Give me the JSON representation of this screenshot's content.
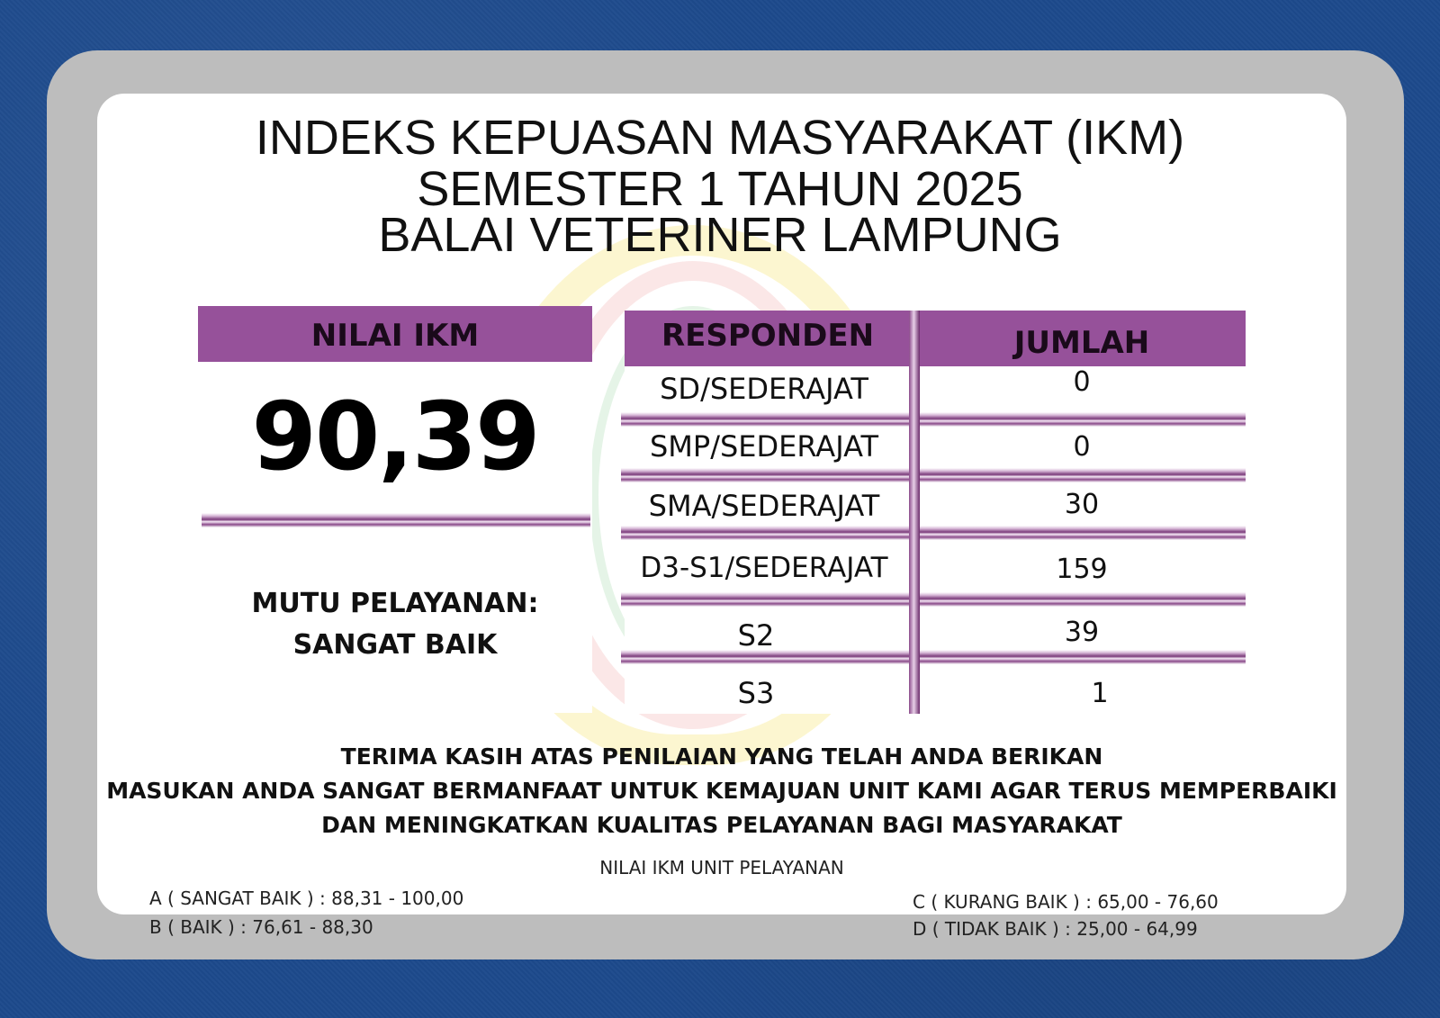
{
  "title": {
    "line1": "INDEKS KEPUASAN MASYARAKAT (IKM)",
    "line2": "SEMESTER 1 TAHUN 2025",
    "line3": "BALAI VETERINER LAMPUNG"
  },
  "nilai": {
    "header": "NILAI IKM",
    "score": "90,39",
    "mutu_label": "MUTU PELAYANAN:",
    "mutu_value": "SANGAT BAIK"
  },
  "responden": {
    "header_responden": "RESPONDEN",
    "header_jumlah": "JUMLAH",
    "rows": [
      {
        "label": "SD/SEDERAJAT",
        "count": "0"
      },
      {
        "label": "SMP/SEDERAJAT",
        "count": "0"
      },
      {
        "label": "SMA/SEDERAJAT",
        "count": "30"
      },
      {
        "label": "D3-S1/SEDERAJAT",
        "count": "159"
      },
      {
        "label": "S2",
        "count": "39"
      },
      {
        "label": "S3",
        "count": "1"
      }
    ]
  },
  "thanks": {
    "line1": "TERIMA KASIH ATAS PENILAIAN YANG TELAH ANDA BERIKAN",
    "line2": "MASUKAN ANDA SANGAT BERMANFAAT UNTUK KEMAJUAN UNIT KAMI AGAR TERUS MEMPERBAIKI",
    "line3": "DAN MENINGKATKAN KUALITAS PELAYANAN BAGI MASYARAKAT"
  },
  "legend": {
    "title": "NILAI IKM UNIT PELAYANAN",
    "a": "A ( SANGAT BAIK ) : 88,31 - 100,00",
    "b": "B ( BAIK ) : 76,61 - 88,30",
    "c": "C ( KURANG BAIK ) : 65,00 - 76,60",
    "d": "D ( TIDAK BAIK ) : 25,00 - 64,99"
  },
  "colors": {
    "header_purple": "#96519a",
    "background_blue": "#1d4a8c",
    "frame_gray": "#bdbdbd"
  }
}
